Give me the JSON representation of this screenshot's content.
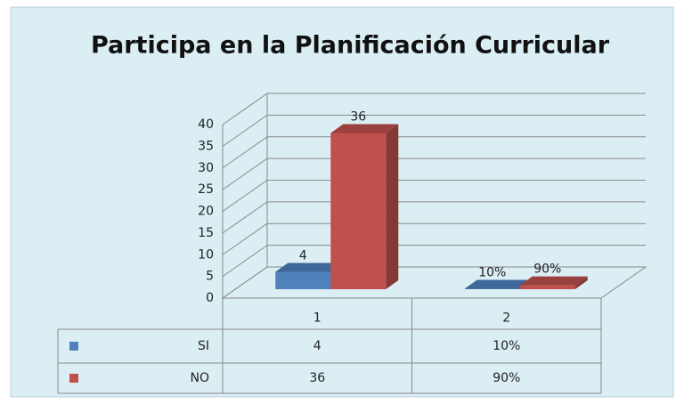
{
  "chart_data": {
    "type": "bar3d",
    "title": "Participa en la Planificación Curricular",
    "categories": [
      "1",
      "2"
    ],
    "series": [
      {
        "name": "SI",
        "color": "#4f81bd",
        "values": [
          4,
          0.1
        ],
        "value_labels": [
          "4",
          "10%"
        ]
      },
      {
        "name": "NO",
        "color": "#c0504d",
        "values": [
          36,
          0.9
        ],
        "value_labels": [
          "36",
          "90%"
        ]
      }
    ],
    "ylim": [
      0,
      40
    ],
    "yticks": [
      0,
      5,
      10,
      15,
      20,
      25,
      30,
      35,
      40
    ],
    "grid": true,
    "data_table": true
  }
}
